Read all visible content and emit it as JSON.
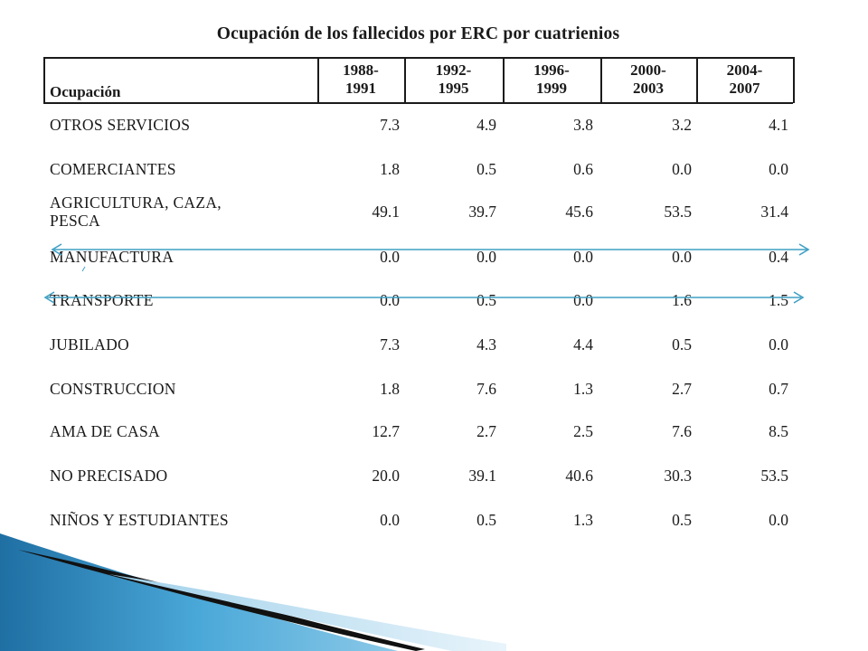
{
  "table": {
    "title": "Ocupación de los fallecidos por ERC por cuatrienios",
    "header_label": "Ocupación",
    "periods": [
      [
        "1988-",
        "1991"
      ],
      [
        "1992-",
        "1995"
      ],
      [
        "1996-",
        "1999"
      ],
      [
        "2000-",
        "2003"
      ],
      [
        "2004-",
        "2007"
      ]
    ],
    "rows": [
      {
        "label": [
          "OTROS SERVICIOS"
        ],
        "values": [
          "7.3",
          "4.9",
          "3.8",
          "3.2",
          "4.1"
        ]
      },
      {
        "label": [
          "COMERCIANTES"
        ],
        "values": [
          "1.8",
          "0.5",
          "0.6",
          "0.0",
          "0.0"
        ]
      },
      {
        "label": [
          "AGRICULTURA, CAZA,",
          "PESCA"
        ],
        "values": [
          "49.1",
          "39.7",
          "45.6",
          "53.5",
          "31.4"
        ]
      },
      {
        "label": [
          "MANUFACTURA"
        ],
        "values": [
          "0.0",
          "0.0",
          "0.0",
          "0.0",
          "0.4"
        ]
      },
      {
        "label": [
          "TRANSPORTE"
        ],
        "values": [
          "0.0",
          "0.5",
          "0.0",
          "1.6",
          "1.5"
        ]
      },
      {
        "label": [
          "JUBILADO"
        ],
        "values": [
          "7.3",
          "4.3",
          "4.4",
          "0.5",
          "0.0"
        ]
      },
      {
        "label": [
          "CONSTRUCCION"
        ],
        "values": [
          "1.8",
          "7.6",
          "1.3",
          "2.7",
          "0.7"
        ]
      },
      {
        "label": [
          "AMA DE CASA"
        ],
        "values": [
          "12.7",
          "2.7",
          "2.5",
          "7.6",
          "8.5"
        ]
      },
      {
        "label": [
          "NO PRECISADO"
        ],
        "values": [
          "20.0",
          "39.1",
          "40.6",
          "30.3",
          "53.5"
        ]
      },
      {
        "label": [
          "NIÑOS Y ESTUDIANTES"
        ],
        "values": [
          "0.0",
          "0.5",
          "1.3",
          "0.5",
          "0.0"
        ]
      }
    ]
  },
  "colors": {
    "arrow": "#3fa0c4",
    "deco_dark": "#111111",
    "deco_blue": "#2f86b8",
    "deco_light": "#b8dcef"
  }
}
